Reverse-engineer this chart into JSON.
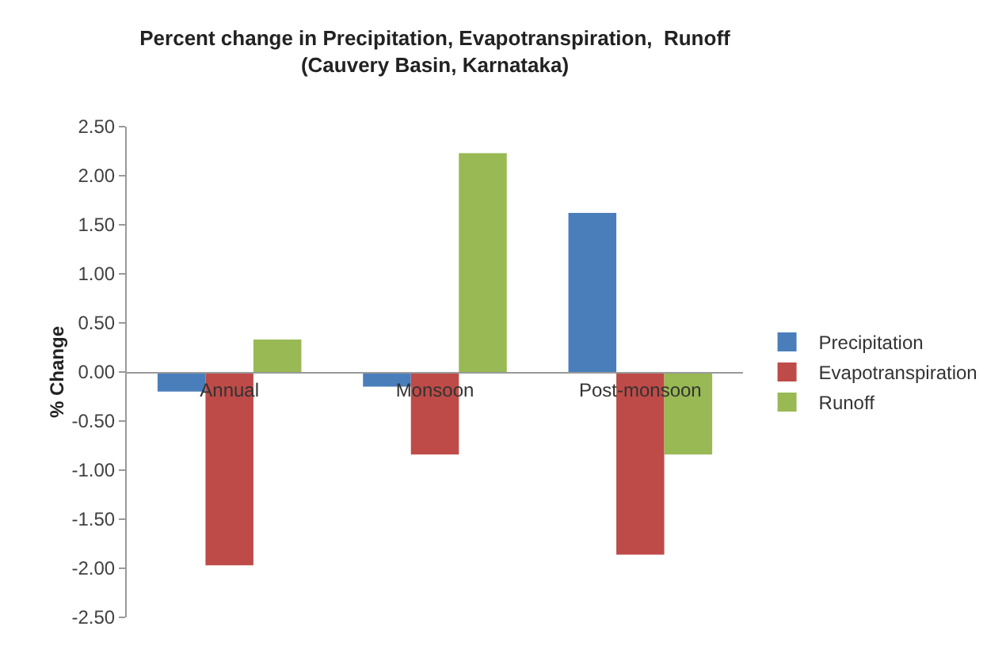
{
  "chart_data": {
    "type": "bar",
    "title": "Percent change in Precipitation, Evapotranspiration,  Runoff\n(Cauvery Basin, Karnataka)",
    "ylabel": "% Change",
    "categories": [
      "Annual",
      "Monsoon",
      "Post-monsoon"
    ],
    "series": [
      {
        "name": "Precipitation",
        "color": "#4a7ebb",
        "values": [
          -0.2,
          -0.15,
          1.62
        ]
      },
      {
        "name": "Evapotranspiration",
        "color": "#be4b48",
        "values": [
          -1.97,
          -0.84,
          -1.86
        ]
      },
      {
        "name": "Runoff",
        "color": "#98b954",
        "values": [
          0.33,
          2.23,
          -0.84
        ]
      }
    ],
    "ylim": [
      -2.5,
      2.5
    ],
    "yticks": [
      {
        "value": -2.5,
        "label": "-2.50"
      },
      {
        "value": -2,
        "label": "-2.00"
      },
      {
        "value": -1.5,
        "label": "-1.50"
      },
      {
        "value": -1,
        "label": "-1.00"
      },
      {
        "value": -0.5,
        "label": "-0.50"
      },
      {
        "value": 0,
        "label": "0.00"
      },
      {
        "value": 0.5,
        "label": "0.50"
      },
      {
        "value": 1,
        "label": "1.00"
      },
      {
        "value": 1.5,
        "label": "1.50"
      },
      {
        "value": 2,
        "label": "2.00"
      },
      {
        "value": 2.5,
        "label": "2.50"
      }
    ],
    "grid": false,
    "legend": "right"
  }
}
